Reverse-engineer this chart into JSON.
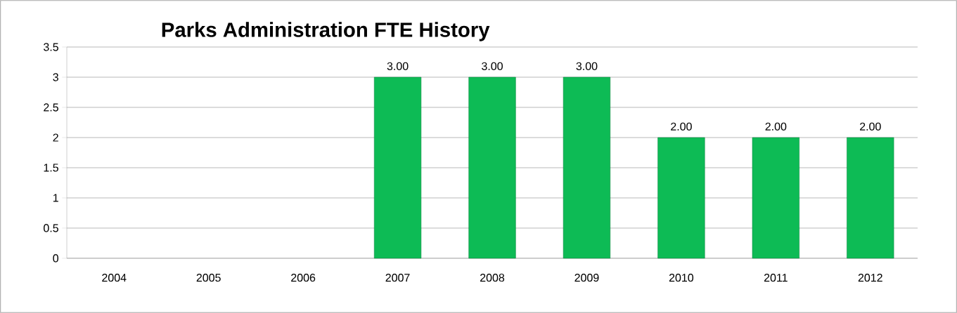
{
  "chart_data": {
    "type": "bar",
    "title": "Parks Administration FTE History",
    "categories": [
      "2004",
      "2005",
      "2006",
      "2007",
      "2008",
      "2009",
      "2010",
      "2011",
      "2012"
    ],
    "values": [
      null,
      null,
      null,
      3,
      3,
      3,
      2,
      2,
      2
    ],
    "value_labels": [
      null,
      null,
      null,
      "3.00",
      "3.00",
      "3.00",
      "2.00",
      "2.00",
      "2.00"
    ],
    "color": "#0dbb55",
    "ylim": [
      0,
      3.5
    ],
    "yticks": [
      0,
      0.5,
      1,
      1.5,
      2,
      2.5,
      3,
      3.5
    ],
    "grid": "y"
  }
}
